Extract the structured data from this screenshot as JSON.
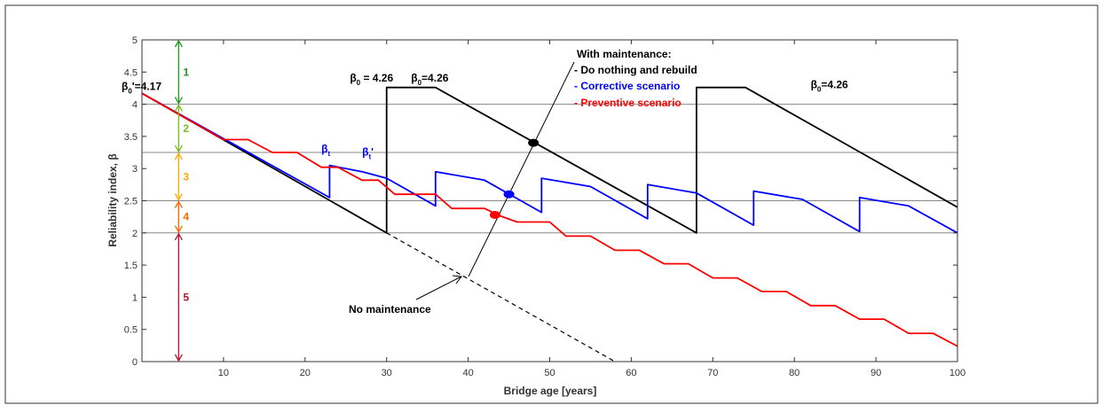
{
  "chart_data": {
    "type": "line",
    "xlabel": "Bridge age [years]",
    "ylabel": "Reliability index, β",
    "xlim": [
      0,
      100
    ],
    "ylim": [
      0,
      5
    ],
    "xticks": [
      10,
      20,
      30,
      40,
      50,
      60,
      70,
      80,
      90,
      100
    ],
    "yticks": [
      0,
      0.5,
      1,
      1.5,
      2,
      2.5,
      3,
      3.5,
      4,
      4.5,
      5
    ],
    "ytick_labels": [
      "0",
      "0.5",
      "1",
      "1.5",
      "2",
      "2.5",
      "3",
      "3.5",
      "4",
      "4.5",
      "5"
    ],
    "grid": "horizontal lines at β = 2, 2.5, 3.25, 4",
    "grid_y": [
      2,
      2.5,
      3.25,
      4
    ],
    "series": [
      {
        "name": "Do nothing and rebuild",
        "color": "#000000",
        "dashed": false,
        "x": [
          0,
          30,
          30,
          36,
          68,
          68,
          74,
          100
        ],
        "y": [
          4.17,
          2.0,
          4.26,
          4.26,
          2.0,
          4.26,
          4.26,
          2.4
        ]
      },
      {
        "name": "Corrective scenario",
        "color": "#0000ff",
        "dashed": false,
        "x": [
          0,
          23,
          23,
          27,
          30,
          36,
          36,
          42,
          49,
          49,
          55,
          62,
          62,
          68,
          75,
          75,
          81,
          88,
          88,
          94,
          100
        ],
        "y": [
          4.17,
          2.55,
          3.05,
          2.95,
          2.85,
          2.42,
          2.95,
          2.82,
          2.32,
          2.85,
          2.72,
          2.22,
          2.75,
          2.62,
          2.12,
          2.65,
          2.52,
          2.02,
          2.55,
          2.42,
          2.0
        ]
      },
      {
        "name": "Preventive scenario",
        "color": "#ff0000",
        "dashed": false,
        "x": [
          0,
          10,
          13,
          16,
          19,
          22,
          24,
          27,
          29,
          31,
          33,
          36,
          38,
          40,
          42,
          44,
          46,
          48,
          50,
          52,
          55,
          58,
          61,
          64,
          67,
          70,
          73,
          76,
          79,
          82,
          85,
          88,
          91,
          94,
          97,
          100
        ],
        "y": [
          4.17,
          3.45,
          3.45,
          3.25,
          3.25,
          3.02,
          3.02,
          2.82,
          2.82,
          2.6,
          2.6,
          2.6,
          2.38,
          2.38,
          2.38,
          2.26,
          2.17,
          2.17,
          2.17,
          1.95,
          1.95,
          1.73,
          1.73,
          1.52,
          1.52,
          1.3,
          1.3,
          1.09,
          1.09,
          0.87,
          0.87,
          0.66,
          0.66,
          0.44,
          0.44,
          0.24
        ]
      },
      {
        "name": "No maintenance",
        "color": "#000000",
        "dashed": true,
        "x": [
          30,
          58
        ],
        "y": [
          2.0,
          0.0
        ]
      }
    ],
    "markers": [
      {
        "series": "Do nothing and rebuild",
        "x": 48,
        "y": 3.4,
        "color": "#000000"
      },
      {
        "series": "Corrective scenario",
        "x": 45,
        "y": 2.6,
        "color": "#0000ff"
      },
      {
        "series": "Preventive scenario",
        "x": 43.3,
        "y": 2.28,
        "color": "#ff0000"
      }
    ],
    "legend_box": {
      "title": "With maintenance:",
      "entries": [
        {
          "text": "- Do nothing and rebuild",
          "color": "#000000"
        },
        {
          "text": "- Corrective scenario",
          "color": "#0000ff"
        },
        {
          "text": "- Preventive scenario",
          "color": "#ff0000"
        }
      ],
      "placement": "top-center"
    },
    "annotations": [
      {
        "id": "b0-prime",
        "base": "β",
        "sub": "0",
        "rest": "'=4.17",
        "color": "#000000",
        "x": -2.5,
        "y": 4.22
      },
      {
        "id": "b0-left",
        "base": "β",
        "sub": "0",
        "rest": " = 4.26",
        "color": "#000000",
        "x": 25.5,
        "y": 4.35
      },
      {
        "id": "b0-mid",
        "base": "β",
        "sub": "0",
        "rest": "=4.26",
        "color": "#000000",
        "x": 33,
        "y": 4.35
      },
      {
        "id": "b0-right",
        "base": "β",
        "sub": "0",
        "rest": "=4.26",
        "color": "#000000",
        "x": 82,
        "y": 4.25
      },
      {
        "id": "bt",
        "base": "β",
        "sub": "t",
        "rest": "",
        "color": "#0000ff",
        "x": 22,
        "y": 3.25
      },
      {
        "id": "bt-prime",
        "base": "β",
        "sub": "t",
        "rest": "'",
        "color": "#0000ff",
        "x": 27,
        "y": 3.2
      }
    ],
    "no_maintenance_label": "No maintenance",
    "bands": [
      {
        "label": "1",
        "y_bottom": 4.0,
        "y_top": 5.0,
        "color": "#1a9a1a"
      },
      {
        "label": "2",
        "y_bottom": 3.25,
        "y_top": 4.0,
        "color": "#77bb22"
      },
      {
        "label": "3",
        "y_bottom": 2.5,
        "y_top": 3.25,
        "color": "#ffaa00"
      },
      {
        "label": "4",
        "y_bottom": 2.0,
        "y_top": 2.5,
        "color": "#ff6600"
      },
      {
        "label": "5",
        "y_bottom": 0.0,
        "y_top": 2.0,
        "color": "#b8122b"
      }
    ],
    "band_x": 4.5
  }
}
